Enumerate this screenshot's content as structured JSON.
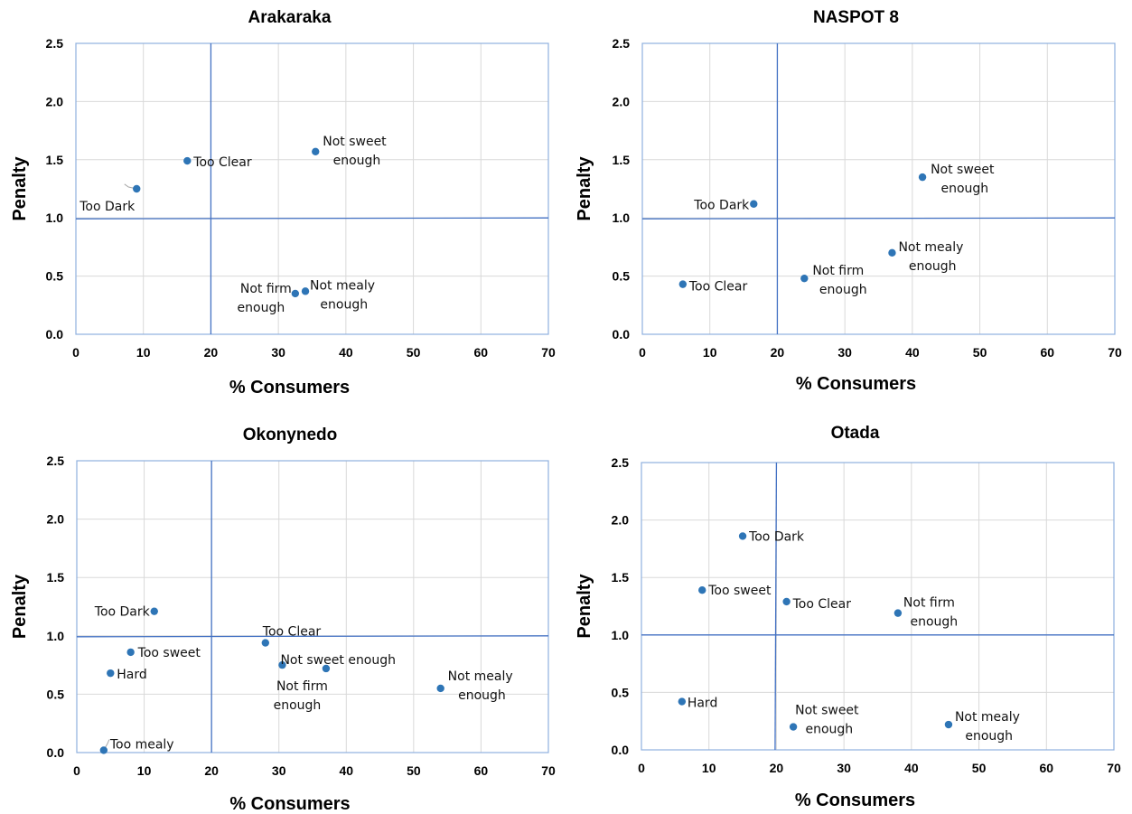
{
  "chart_data": [
    {
      "type": "scatter",
      "title": "Arakaraka",
      "xlabel": "% Consumers",
      "ylabel": "Penalty",
      "xlim": [
        0,
        70
      ],
      "ylim": [
        0,
        2.5
      ],
      "x_ticks": [
        0,
        10,
        20,
        30,
        40,
        50,
        60,
        70
      ],
      "y_ticks": [
        "0.0",
        "0.5",
        "1.0",
        "1.5",
        "2.0",
        "2.5"
      ],
      "grid": true,
      "reference_lines": {
        "x": 20,
        "y": 1.0
      },
      "points": [
        {
          "label": [
            "Not sweet",
            "enough"
          ],
          "x": 35.5,
          "y": 1.57
        },
        {
          "label": [
            "Too Clear"
          ],
          "x": 16.5,
          "y": 1.49
        },
        {
          "label": [
            "Too Dark"
          ],
          "x": 9.0,
          "y": 1.25
        },
        {
          "label": [
            "Not mealy",
            "enough"
          ],
          "x": 34.0,
          "y": 0.37
        },
        {
          "label": [
            "Not firm",
            "enough"
          ],
          "x": 32.5,
          "y": 0.35
        }
      ]
    },
    {
      "type": "scatter",
      "title": "NASPOT 8",
      "xlabel": "% Consumers",
      "ylabel": "Penalty",
      "xlim": [
        0,
        70
      ],
      "ylim": [
        0,
        2.5
      ],
      "x_ticks": [
        0,
        10,
        20,
        30,
        40,
        50,
        60,
        70
      ],
      "y_ticks": [
        "0.0",
        "0.5",
        "1.0",
        "1.5",
        "2.0",
        "2.5"
      ],
      "grid": true,
      "reference_lines": {
        "x": 20,
        "y": 1.0
      },
      "points": [
        {
          "label": [
            "Not sweet",
            "enough"
          ],
          "x": 41.5,
          "y": 1.35
        },
        {
          "label": [
            "Too Dark"
          ],
          "x": 16.5,
          "y": 1.12
        },
        {
          "label": [
            "Not mealy",
            "enough"
          ],
          "x": 37.0,
          "y": 0.7
        },
        {
          "label": [
            "Not firm",
            "enough"
          ],
          "x": 24.0,
          "y": 0.48
        },
        {
          "label": [
            "Too Clear"
          ],
          "x": 6.0,
          "y": 0.43
        }
      ]
    },
    {
      "type": "scatter",
      "title": "Okonynedo",
      "xlabel": "% Consumers",
      "ylabel": "Penalty",
      "xlim": [
        0,
        70
      ],
      "ylim": [
        0,
        2.5
      ],
      "x_ticks": [
        0,
        10,
        20,
        30,
        40,
        50,
        60,
        70
      ],
      "y_ticks": [
        "0.0",
        "0.5",
        "1.0",
        "1.5",
        "2.0",
        "2.5"
      ],
      "grid": true,
      "reference_lines": {
        "x": 20,
        "y": 1.0
      },
      "points": [
        {
          "label": [
            "Too Dark"
          ],
          "x": 11.5,
          "y": 1.21
        },
        {
          "label": [
            "Too Clear"
          ],
          "x": 28.0,
          "y": 0.94
        },
        {
          "label": [
            "Too sweet"
          ],
          "x": 8.0,
          "y": 0.86
        },
        {
          "label": [
            "Not sweet enough"
          ],
          "x": 30.5,
          "y": 0.75
        },
        {
          "label": [
            "Not firm",
            "enough"
          ],
          "x": 37.0,
          "y": 0.72
        },
        {
          "label": [
            "Hard"
          ],
          "x": 5.0,
          "y": 0.68
        },
        {
          "label": [
            "Not mealy",
            "enough"
          ],
          "x": 54.0,
          "y": 0.55
        },
        {
          "label": [
            "Too mealy"
          ],
          "x": 4.0,
          "y": 0.02
        }
      ]
    },
    {
      "type": "scatter",
      "title": "Otada",
      "xlabel": "% Consumers",
      "ylabel": "Penalty",
      "xlim": [
        0,
        70
      ],
      "ylim": [
        0,
        2.5
      ],
      "x_ticks": [
        0,
        10,
        20,
        30,
        40,
        50,
        60,
        70
      ],
      "y_ticks": [
        "0.0",
        "0.5",
        "1.0",
        "1.5",
        "2.0",
        "2.5"
      ],
      "grid": true,
      "reference_lines": {
        "x": 20,
        "y": 1.0
      },
      "points": [
        {
          "label": [
            "Too Dark"
          ],
          "x": 15.0,
          "y": 1.86
        },
        {
          "label": [
            "Too sweet"
          ],
          "x": 9.0,
          "y": 1.39
        },
        {
          "label": [
            "Too Clear"
          ],
          "x": 21.5,
          "y": 1.29
        },
        {
          "label": [
            "Not firm",
            "enough"
          ],
          "x": 38.0,
          "y": 1.19
        },
        {
          "label": [
            "Hard"
          ],
          "x": 6.0,
          "y": 0.42
        },
        {
          "label": [
            "Not mealy",
            "enough"
          ],
          "x": 45.5,
          "y": 0.22
        },
        {
          "label": [
            "Not sweet",
            "enough"
          ],
          "x": 22.5,
          "y": 0.2
        }
      ]
    }
  ]
}
